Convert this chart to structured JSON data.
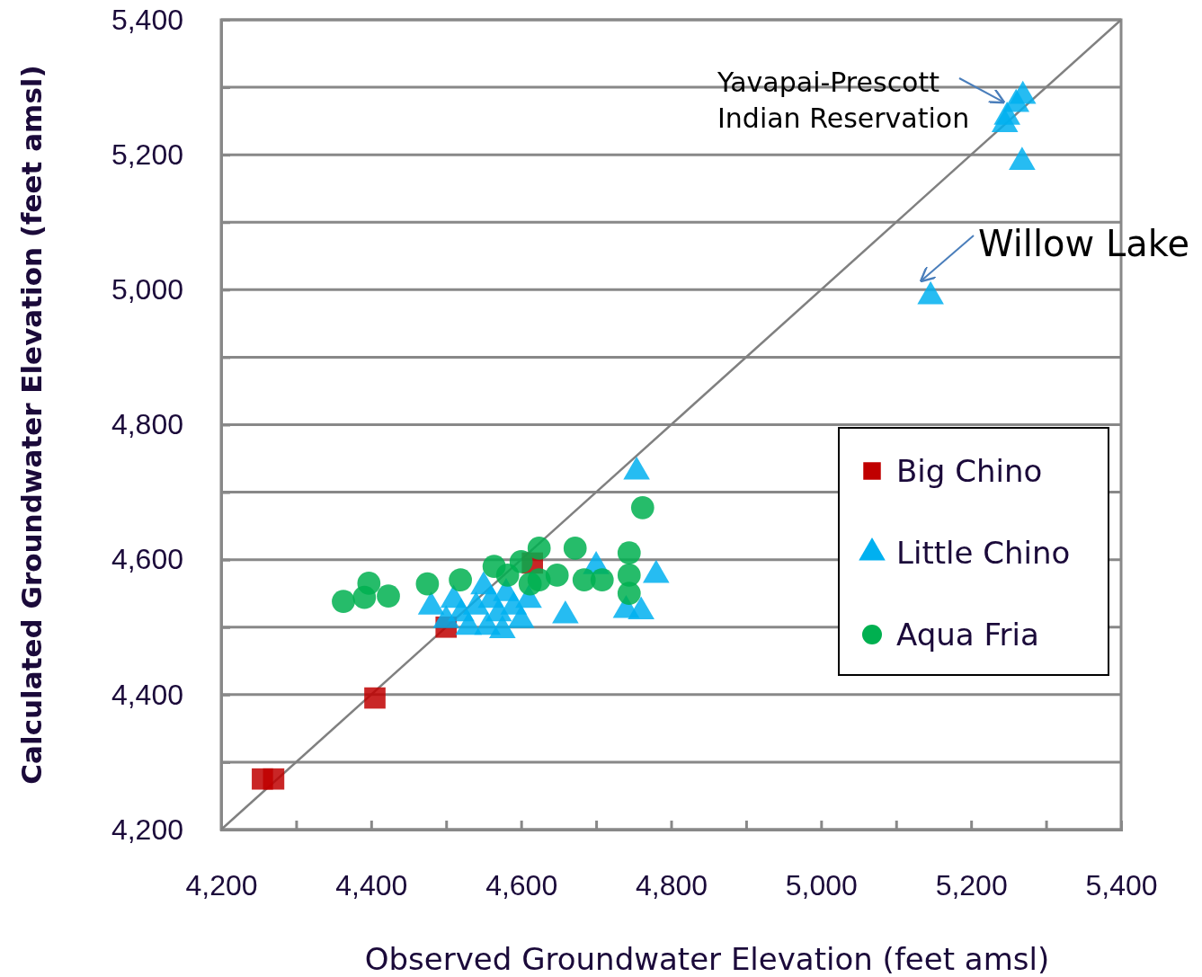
{
  "chart_data": {
    "type": "scatter",
    "xlabel": "Observed Groundwater Elevation (feet amsl)",
    "ylabel": "Calculated Groundwater Elevation  (feet amsl)",
    "xlim": [
      4200,
      5400
    ],
    "ylim": [
      4200,
      5400
    ],
    "xticks": [
      {
        "value": 4200,
        "label": "4,200"
      },
      {
        "value": 4300,
        "label": null
      },
      {
        "value": 4400,
        "label": "4,400"
      },
      {
        "value": 4500,
        "label": null
      },
      {
        "value": 4600,
        "label": "4,600"
      },
      {
        "value": 4700,
        "label": null
      },
      {
        "value": 4800,
        "label": "4,800"
      },
      {
        "value": 4900,
        "label": null
      },
      {
        "value": 5000,
        "label": "5,000"
      },
      {
        "value": 5100,
        "label": null
      },
      {
        "value": 5200,
        "label": "5,200"
      },
      {
        "value": 5300,
        "label": null
      },
      {
        "value": 5400,
        "label": "5,400"
      }
    ],
    "yticks": [
      {
        "value": 4200,
        "label": "4,200"
      },
      {
        "value": 4300,
        "label": null
      },
      {
        "value": 4400,
        "label": "4,400"
      },
      {
        "value": 4500,
        "label": null
      },
      {
        "value": 4600,
        "label": "4,600"
      },
      {
        "value": 4700,
        "label": null
      },
      {
        "value": 4800,
        "label": "4,800"
      },
      {
        "value": 4900,
        "label": null
      },
      {
        "value": 5000,
        "label": "5,000"
      },
      {
        "value": 5100,
        "label": null
      },
      {
        "value": 5200,
        "label": "5,200"
      },
      {
        "value": 5300,
        "label": null
      },
      {
        "value": 5400,
        "label": "5,400"
      }
    ],
    "grid": "y",
    "legend": "right",
    "annotations": [
      {
        "text": "Yavapai-Prescott Indian Reservation",
        "x": 5250,
        "y": 5265
      },
      {
        "text": "Willow Lake",
        "x": 5146,
        "y": 4995
      }
    ],
    "series": [
      {
        "type": "line",
        "color": "#808080",
        "marker": "none",
        "x": [
          4200,
          5400
        ],
        "values": [
          4200,
          5400
        ]
      },
      {
        "name": "Big Chino",
        "color": "#c00000",
        "marker": "square",
        "x": [
          4255,
          4270,
          4405,
          4500,
          4615
        ],
        "values": [
          4275,
          4275,
          4395,
          4500,
          4595
        ]
      },
      {
        "name": "Little Chino",
        "color": "#00b0f0",
        "marker": "triangle",
        "x": [
          5269,
          5260,
          5248,
          5245,
          5268,
          5146,
          4754,
          4780,
          4760,
          4740,
          4659,
          4480,
          4500,
          4520,
          4540,
          4550,
          4555,
          4560,
          4570,
          4580,
          4590,
          4600,
          4610,
          4530,
          4510,
          4700,
          4575
        ],
        "values": [
          5287,
          5275,
          5256,
          5245,
          5189,
          4990,
          4730,
          4577,
          4523,
          4525,
          4517,
          4530,
          4510,
          4520,
          4530,
          4560,
          4500,
          4540,
          4520,
          4550,
          4530,
          4510,
          4540,
          4500,
          4540,
          4590,
          4495
        ]
      },
      {
        "name": "Aqua Fria",
        "color": "#00b050",
        "marker": "circle",
        "x": [
          4363,
          4397,
          4423,
          4391,
          4475,
          4519,
          4564,
          4582,
          4600,
          4612,
          4624,
          4648,
          4672,
          4684,
          4708,
          4744,
          4744,
          4744,
          4762,
          4624
        ],
        "values": [
          4538,
          4565,
          4546,
          4544,
          4564,
          4570,
          4590,
          4577,
          4597,
          4564,
          4570,
          4577,
          4617,
          4570,
          4570,
          4610,
          4577,
          4550,
          4677,
          4617
        ]
      }
    ]
  }
}
